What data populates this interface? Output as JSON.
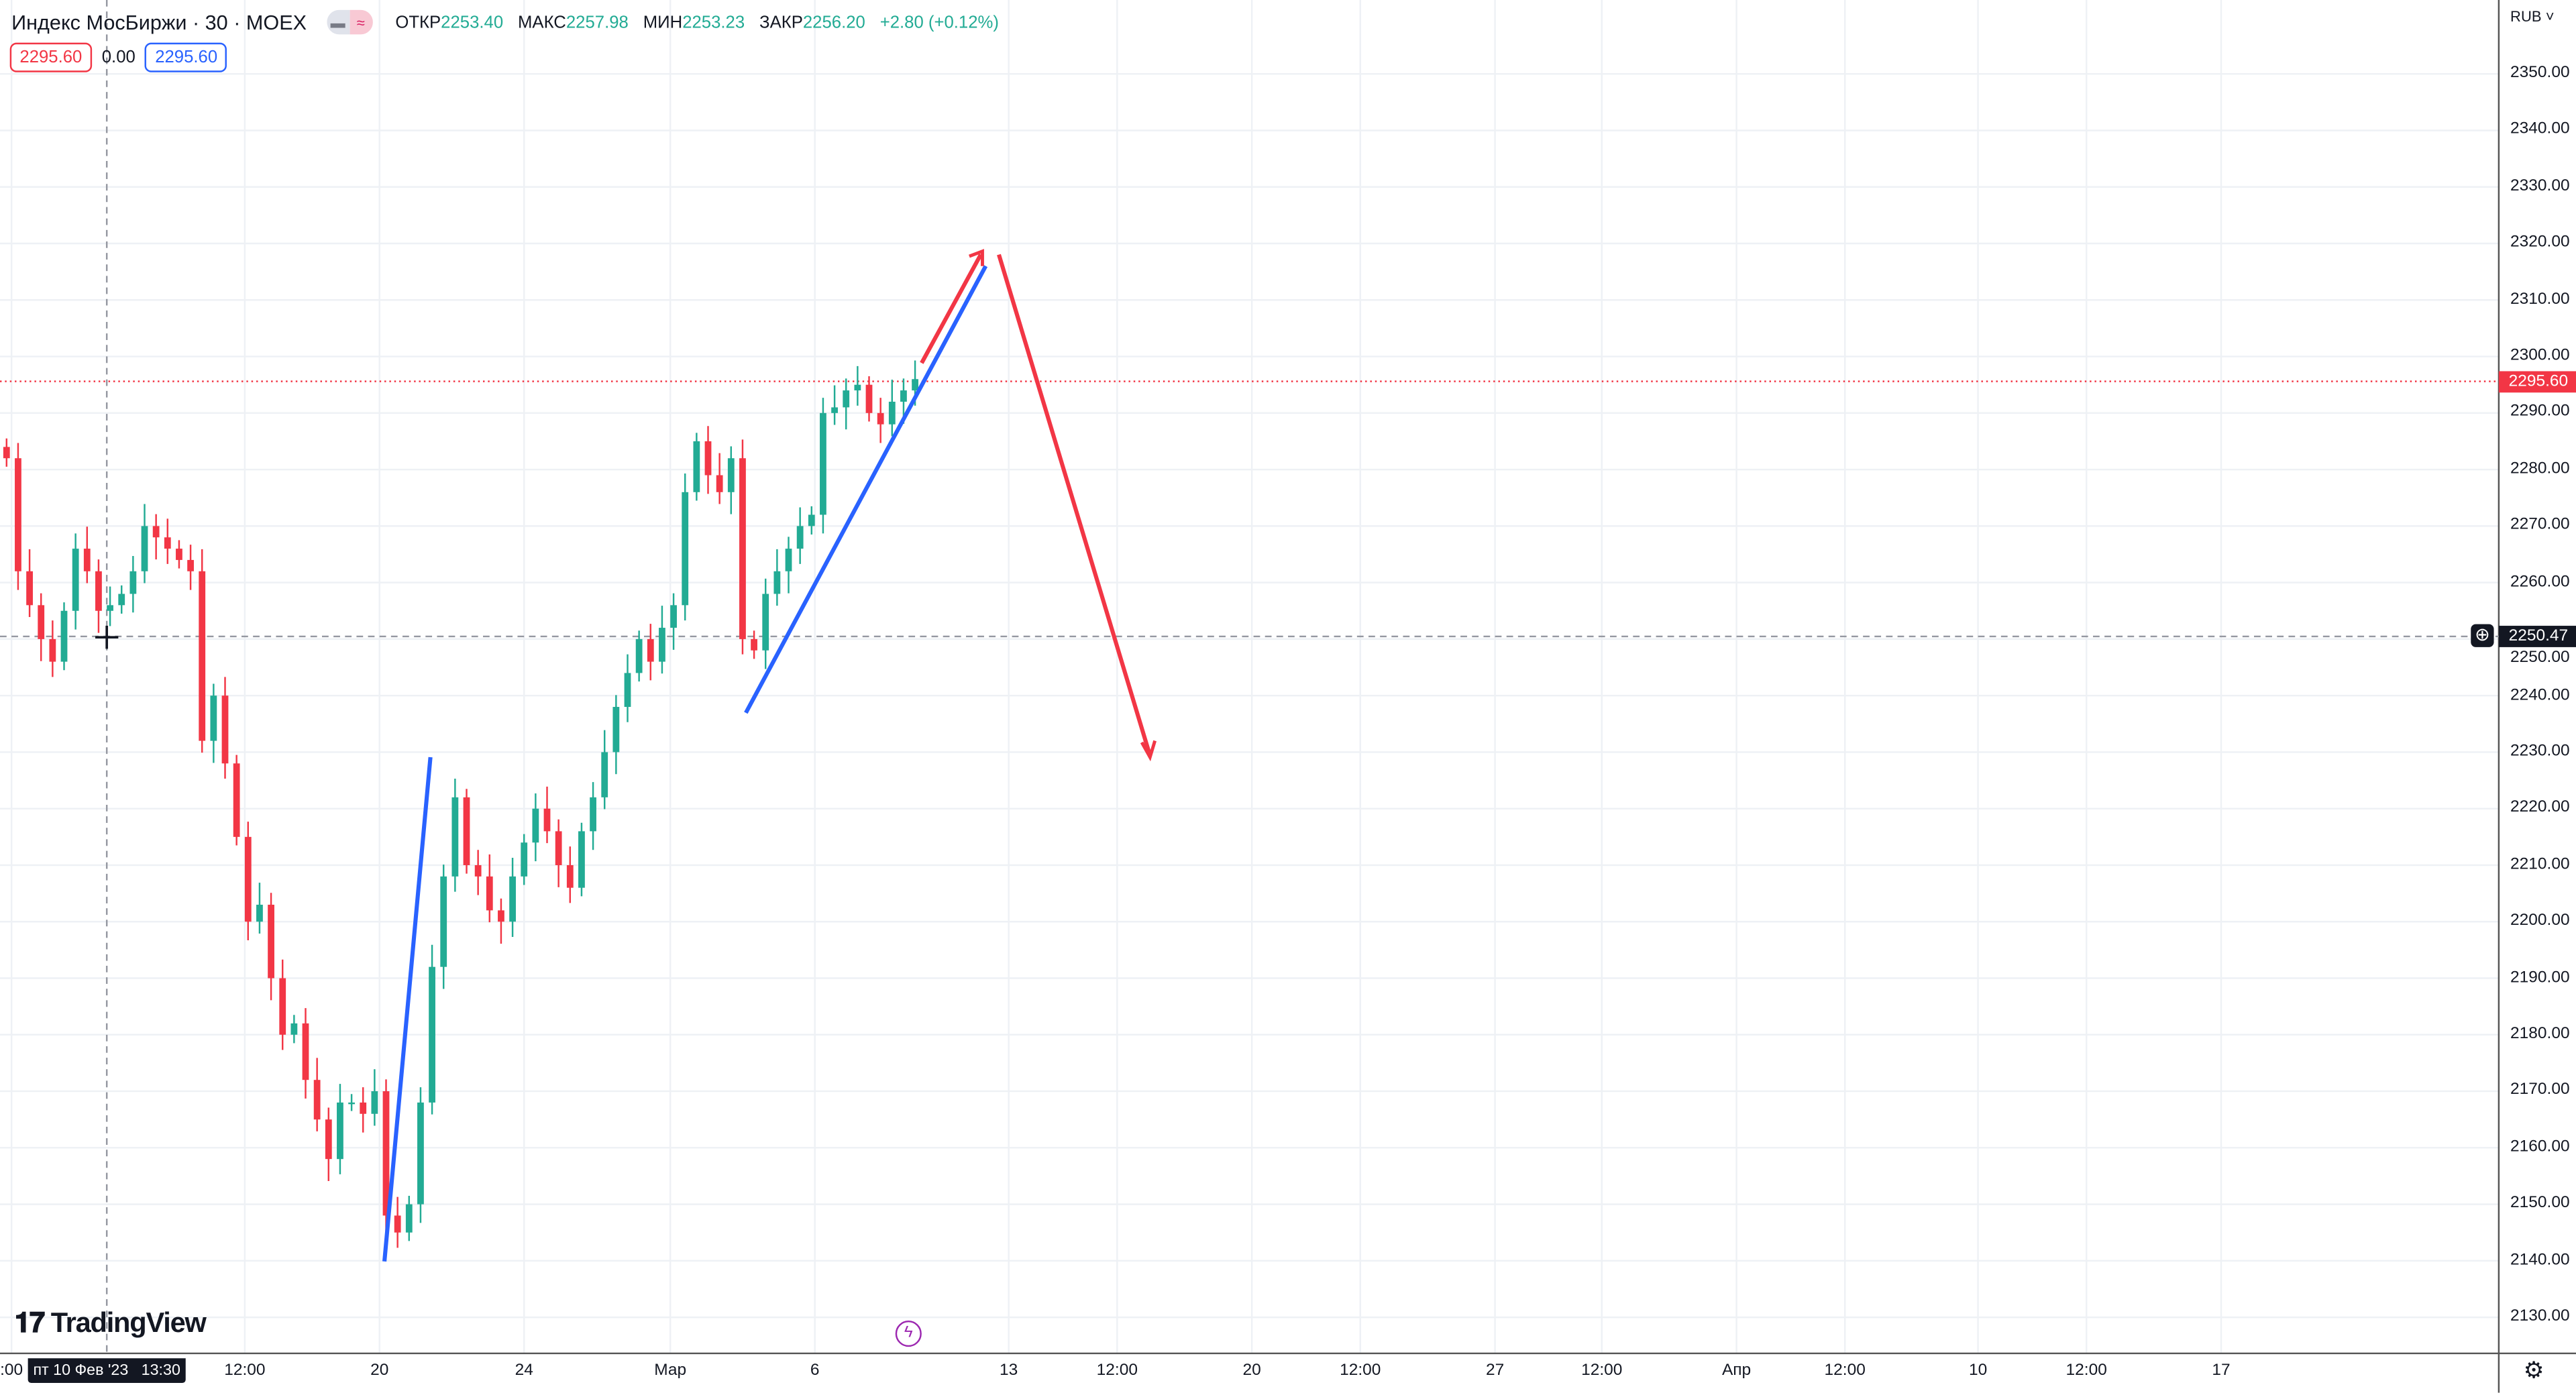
{
  "header": {
    "symbol_title": "Индекс МосБиржи · 30 · MOEX",
    "ohlc": [
      {
        "label": "ОТКР",
        "value": "2253.40"
      },
      {
        "label": "МАКС",
        "value": "2257.98"
      },
      {
        "label": "МИН",
        "value": "2253.23"
      },
      {
        "label": "ЗАКР",
        "value": "2256.20"
      }
    ],
    "change": "+2.80 (+0.12%)",
    "sell_price": "2295.60",
    "spread": "0.00",
    "buy_price": "2295.60"
  },
  "currency": "RUB",
  "brand": "TradingView",
  "crosshair": {
    "date_label": "пт 10 Фев '23   13:30",
    "price_label": "2250.47"
  },
  "last_price_label": "2295.60",
  "colors": {
    "up": "#22ab94",
    "down": "#f23645",
    "blue_line": "#2962ff",
    "red_arrow": "#f23645"
  },
  "chart_data": {
    "type": "candlestick",
    "title": "Индекс МосБиржи · 30 · MOEX",
    "ylabel": "RUB",
    "ylim": [
      2125,
      2355
    ],
    "yticks": [
      "2350.00",
      "2340.00",
      "2330.00",
      "2320.00",
      "2310.00",
      "2300.00",
      "2290.00",
      "2280.00",
      "2270.00",
      "2260.00",
      "2250.00",
      "2240.00",
      "2230.00",
      "2220.00",
      "2210.00",
      "2200.00",
      "2190.00",
      "2180.00",
      "2170.00",
      "2160.00",
      "2150.00",
      "2140.00",
      "2130.00"
    ],
    "xticks": [
      ":00",
      "12:00",
      "20",
      "24",
      "Мар",
      "6",
      "13",
      "12:00",
      "20",
      "12:00",
      "27",
      "12:00",
      "Апр",
      "12:00",
      "10",
      "12:00",
      "17"
    ],
    "closes": [
      2282,
      2262,
      2256,
      2250,
      2246,
      2255,
      2266,
      2262,
      2255,
      2256,
      2258,
      2262,
      2270,
      2268,
      2266,
      2264,
      2262,
      2232,
      2240,
      2228,
      2215,
      2200,
      2203,
      2190,
      2180,
      2182,
      2172,
      2165,
      2158,
      2168,
      2168,
      2166,
      2170,
      2148,
      2145,
      2150,
      2168,
      2192,
      2208,
      2222,
      2210,
      2208,
      2202,
      2200,
      2208,
      2214,
      2220,
      2216,
      2210,
      2206,
      2216,
      2222,
      2230,
      2238,
      2244,
      2250,
      2246,
      2252,
      2256,
      2276,
      2285,
      2279,
      2276,
      2282,
      2250,
      2248,
      2258,
      2262,
      2266,
      2270,
      2272,
      2290,
      2291,
      2294,
      2295,
      2290,
      2288,
      2292,
      2294,
      2296
    ],
    "last_price": 2295.6,
    "crosshair_price": 2250.47,
    "drawings": [
      {
        "type": "trendline",
        "color": "blue",
        "from_price": 2140,
        "to_price": 2229
      },
      {
        "type": "trendline",
        "color": "blue",
        "from_price": 2237,
        "to_price": 2316
      },
      {
        "type": "arrow",
        "color": "red",
        "from_price": 2298,
        "to_price": 2319
      },
      {
        "type": "arrow",
        "color": "red",
        "from_price": 2319,
        "to_price": 2230
      }
    ]
  }
}
